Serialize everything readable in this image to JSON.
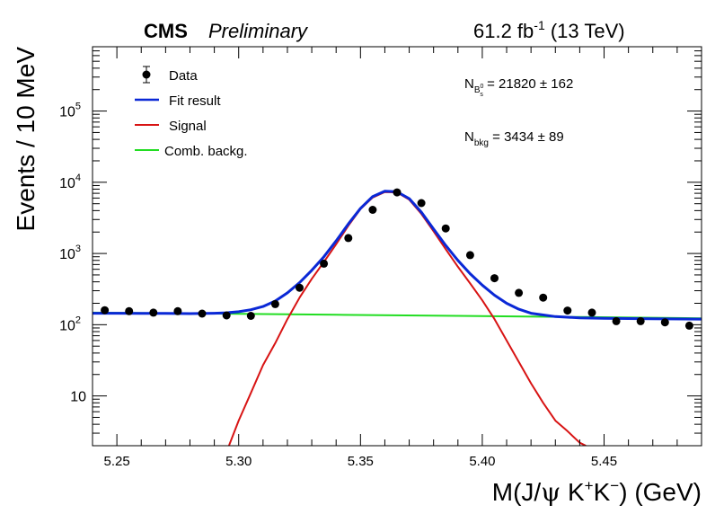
{
  "header": {
    "experiment": "CMS",
    "status": "Preliminary",
    "lumi_prefix": "61.2 fb",
    "lumi_exponent": "-1",
    "lumi_suffix": " (13 TeV)"
  },
  "annotations": {
    "n_sig_label": "N",
    "n_sig_sub": "B",
    "n_sig_subsub": "s",
    "n_sig_subsup": "0",
    "n_sig_value": " = 21820  ± 162",
    "n_bkg_label": "N",
    "n_bkg_sub": "bkg",
    "n_bkg_value": " = 3434  ± 89"
  },
  "chart_data": {
    "type": "line",
    "xlabel": "M(J/ψ K⁺K⁻) (GeV)",
    "xlabel_parts": {
      "pre": "M(J/",
      "psi": "ψ",
      "mid": " K",
      "sup1": "+",
      "k2": "K",
      "sup2": "−",
      "post": ") (GeV)"
    },
    "ylabel": "Events / 10 MeV",
    "xlim": [
      5.24,
      5.49
    ],
    "ylim": [
      2,
      800000
    ],
    "yscale": "log",
    "x_ticks": [
      5.25,
      5.3,
      5.35,
      5.4,
      5.45
    ],
    "x_tick_labels": [
      "5.25",
      "5.30",
      "5.35",
      "5.40",
      "5.45"
    ],
    "y_ticks": [
      10,
      100,
      1000,
      10000,
      100000
    ],
    "y_tick_labels": [
      {
        "base": "10",
        "exp": ""
      },
      {
        "base": "10",
        "exp": "2"
      },
      {
        "base": "10",
        "exp": "3"
      },
      {
        "base": "10",
        "exp": "4"
      },
      {
        "base": "10",
        "exp": "5"
      }
    ],
    "legend": {
      "position": "top-left",
      "entries": [
        {
          "label": "Data",
          "kind": "marker",
          "color": "#000000"
        },
        {
          "label": "Fit result",
          "kind": "line",
          "color": "#0a28d6"
        },
        {
          "label": "Signal",
          "kind": "line",
          "color": "#d81414"
        },
        {
          "label": "Comb. backg.",
          "kind": "line",
          "color": "#22dd22"
        }
      ]
    },
    "data_points": {
      "x": [
        5.245,
        5.255,
        5.265,
        5.275,
        5.285,
        5.295,
        5.305,
        5.315,
        5.325,
        5.335,
        5.345,
        5.355,
        5.365,
        5.375,
        5.385,
        5.395,
        5.405,
        5.415,
        5.425,
        5.435,
        5.445,
        5.455,
        5.465,
        5.475,
        5.485
      ],
      "y": [
        160,
        155,
        148,
        155,
        143,
        135,
        133,
        195,
        330,
        720,
        1650,
        4100,
        7200,
        5100,
        2250,
        950,
        450,
        280,
        240,
        158,
        148,
        112,
        112,
        108,
        97
      ]
    },
    "series": [
      {
        "name": "Fit result",
        "color": "#0a28d6",
        "x": [
          5.24,
          5.25,
          5.26,
          5.27,
          5.28,
          5.29,
          5.295,
          5.3,
          5.305,
          5.31,
          5.315,
          5.32,
          5.325,
          5.33,
          5.335,
          5.34,
          5.345,
          5.35,
          5.355,
          5.36,
          5.365,
          5.37,
          5.375,
          5.38,
          5.385,
          5.39,
          5.395,
          5.4,
          5.405,
          5.41,
          5.415,
          5.42,
          5.43,
          5.44,
          5.45,
          5.46,
          5.47,
          5.49
        ],
        "y": [
          145,
          145,
          144,
          144,
          143,
          145,
          147,
          152,
          162,
          180,
          215,
          280,
          390,
          580,
          900,
          1500,
          2600,
          4300,
          6300,
          7500,
          7350,
          5900,
          3800,
          2200,
          1300,
          800,
          520,
          360,
          260,
          200,
          165,
          145,
          130,
          125,
          123,
          122,
          121,
          120
        ]
      },
      {
        "name": "Signal",
        "color": "#d81414",
        "x": [
          5.296,
          5.3,
          5.305,
          5.31,
          5.315,
          5.32,
          5.325,
          5.33,
          5.335,
          5.34,
          5.345,
          5.35,
          5.355,
          5.36,
          5.365,
          5.37,
          5.375,
          5.38,
          5.385,
          5.39,
          5.395,
          5.4,
          5.405,
          5.41,
          5.415,
          5.42,
          5.425,
          5.43,
          5.435,
          5.44,
          5.4425
        ],
        "y": [
          2,
          4.5,
          11,
          27,
          55,
          120,
          240,
          440,
          760,
          1350,
          2450,
          4200,
          6100,
          7300,
          7200,
          5700,
          3600,
          2050,
          1150,
          650,
          380,
          220,
          120,
          60,
          30,
          15,
          8,
          4.5,
          3.2,
          2.2,
          2
        ]
      },
      {
        "name": "Comb. backg.",
        "color": "#22dd22",
        "x": [
          5.24,
          5.29,
          5.34,
          5.39,
          5.44,
          5.49
        ],
        "y": [
          148,
          143,
          138,
          133,
          128,
          123
        ]
      }
    ]
  }
}
